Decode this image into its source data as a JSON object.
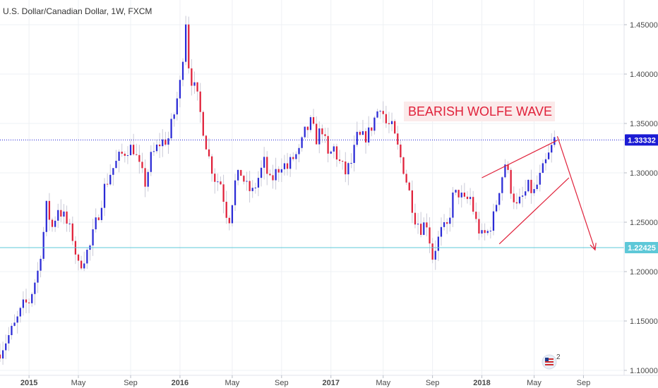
{
  "chart_data": {
    "type": "candlestick",
    "title": "U.S. Dollar/Canadian Dollar, 1W, FXCM",
    "y_ticks": [
      "1.10000",
      "1.15000",
      "1.20000",
      "1.25000",
      "1.30000",
      "1.35000",
      "1.40000",
      "1.45000"
    ],
    "ylim": [
      1.095,
      1.475
    ],
    "x_ticks": [
      {
        "label": "2015",
        "t": 0,
        "year": true
      },
      {
        "label": "May",
        "t": 17,
        "year": false
      },
      {
        "label": "Sep",
        "t": 35,
        "year": false
      },
      {
        "label": "2016",
        "t": 52,
        "year": true
      },
      {
        "label": "May",
        "t": 70,
        "year": false
      },
      {
        "label": "Sep",
        "t": 87,
        "year": false
      },
      {
        "label": "2017",
        "t": 104,
        "year": true
      },
      {
        "label": "May",
        "t": 122,
        "year": false
      },
      {
        "label": "Sep",
        "t": 139,
        "year": false
      },
      {
        "label": "2018",
        "t": 156,
        "year": true
      },
      {
        "label": "May",
        "t": 174,
        "year": false
      },
      {
        "label": "Sep",
        "t": 191,
        "year": false
      }
    ],
    "xlim": [
      -10,
      205
    ],
    "grid": true,
    "up_color": "#2b2bd6",
    "down_color": "#e0213a",
    "wick_color": "#c9c9d6",
    "anchors": [
      [
        -10,
        1.12
      ],
      [
        -5,
        1.145
      ],
      [
        -2,
        1.165
      ],
      [
        0,
        1.17
      ],
      [
        3,
        1.2
      ],
      [
        5,
        1.24
      ],
      [
        6,
        1.265
      ],
      [
        8,
        1.245
      ],
      [
        10,
        1.265
      ],
      [
        12,
        1.255
      ],
      [
        15,
        1.235
      ],
      [
        17,
        1.205
      ],
      [
        19,
        1.215
      ],
      [
        21,
        1.225
      ],
      [
        24,
        1.26
      ],
      [
        26,
        1.285
      ],
      [
        28,
        1.3
      ],
      [
        31,
        1.315
      ],
      [
        34,
        1.325
      ],
      [
        36,
        1.325
      ],
      [
        38,
        1.305
      ],
      [
        40,
        1.29
      ],
      [
        42,
        1.315
      ],
      [
        45,
        1.33
      ],
      [
        48,
        1.335
      ],
      [
        50,
        1.36
      ],
      [
        52,
        1.39
      ],
      [
        53,
        1.42
      ],
      [
        54,
        1.455
      ],
      [
        55,
        1.41
      ],
      [
        56,
        1.395
      ],
      [
        58,
        1.375
      ],
      [
        60,
        1.345
      ],
      [
        62,
        1.315
      ],
      [
        64,
        1.295
      ],
      [
        66,
        1.29
      ],
      [
        68,
        1.26
      ],
      [
        69,
        1.255
      ],
      [
        71,
        1.29
      ],
      [
        73,
        1.3
      ],
      [
        75,
        1.285
      ],
      [
        77,
        1.28
      ],
      [
        79,
        1.295
      ],
      [
        81,
        1.31
      ],
      [
        83,
        1.29
      ],
      [
        85,
        1.3
      ],
      [
        87,
        1.31
      ],
      [
        89,
        1.305
      ],
      [
        91,
        1.315
      ],
      [
        93,
        1.32
      ],
      [
        95,
        1.34
      ],
      [
        97,
        1.35
      ],
      [
        99,
        1.335
      ],
      [
        101,
        1.345
      ],
      [
        103,
        1.315
      ],
      [
        105,
        1.325
      ],
      [
        107,
        1.31
      ],
      [
        109,
        1.3
      ],
      [
        111,
        1.31
      ],
      [
        113,
        1.335
      ],
      [
        115,
        1.335
      ],
      [
        117,
        1.34
      ],
      [
        119,
        1.355
      ],
      [
        121,
        1.37
      ],
      [
        123,
        1.35
      ],
      [
        125,
        1.345
      ],
      [
        127,
        1.325
      ],
      [
        129,
        1.305
      ],
      [
        131,
        1.28
      ],
      [
        133,
        1.255
      ],
      [
        135,
        1.245
      ],
      [
        137,
        1.25
      ],
      [
        139,
        1.215
      ],
      [
        140,
        1.225
      ],
      [
        142,
        1.24
      ],
      [
        144,
        1.245
      ],
      [
        146,
        1.275
      ],
      [
        148,
        1.28
      ],
      [
        150,
        1.27
      ],
      [
        152,
        1.275
      ],
      [
        154,
        1.25
      ],
      [
        156,
        1.235
      ],
      [
        158,
        1.24
      ],
      [
        160,
        1.255
      ],
      [
        162,
        1.285
      ],
      [
        164,
        1.31
      ],
      [
        166,
        1.285
      ],
      [
        168,
        1.265
      ],
      [
        170,
        1.275
      ],
      [
        172,
        1.285
      ],
      [
        174,
        1.28
      ],
      [
        176,
        1.295
      ],
      [
        178,
        1.31
      ],
      [
        180,
        1.325
      ],
      [
        181,
        1.3333
      ]
    ],
    "hlines": [
      {
        "value": 1.33332,
        "label": "1.33332",
        "color": "#1b1bd4",
        "style": "dotted"
      },
      {
        "value": 1.22425,
        "label": "1.22425",
        "color": "#5ec8d8",
        "style": "solid"
      }
    ],
    "annotation": {
      "text": "BEARISH WOLFE WAVE",
      "color": "#e0213a",
      "background": "#fbeaea"
    },
    "wolfe_lines": [
      {
        "from": [
          156,
          1.295
        ],
        "to": [
          182,
          1.333
        ]
      },
      {
        "from": [
          162,
          1.228
        ],
        "to": [
          186,
          1.295
        ]
      },
      {
        "from": [
          182,
          1.337
        ],
        "to": [
          195,
          1.222
        ]
      }
    ],
    "badge": {
      "text": "2"
    }
  }
}
